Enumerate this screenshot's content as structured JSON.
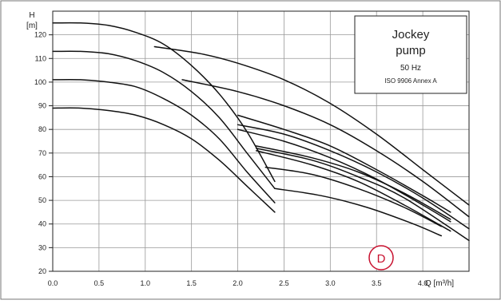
{
  "chart_data": {
    "type": "line",
    "xlabel": "Q [m³/h]",
    "ylabel_symbol": "H",
    "ylabel_unit": "[m]",
    "xlim": [
      0,
      4.5
    ],
    "ylim": [
      20,
      130
    ],
    "x_ticks": [
      "0.0",
      "0.5",
      "1.0",
      "1.5",
      "2.0",
      "2.5",
      "3.0",
      "3.5",
      "4.0"
    ],
    "y_ticks": [
      "20",
      "30",
      "40",
      "50",
      "60",
      "70",
      "80",
      "90",
      "100",
      "110",
      "120"
    ],
    "grid": true,
    "legend_box": {
      "title_line1": "Jockey",
      "title_line2": "pump",
      "frequency": "50 Hz",
      "standard": "ISO 9906 Annex A"
    },
    "badge": "D",
    "series": [
      {
        "points": [
          [
            0,
            125
          ],
          [
            0.3,
            125
          ],
          [
            0.6,
            124
          ],
          [
            0.9,
            121
          ],
          [
            1.2,
            116
          ],
          [
            1.5,
            107
          ],
          [
            1.8,
            95
          ],
          [
            2.1,
            79
          ],
          [
            2.4,
            58
          ]
        ]
      },
      {
        "points": [
          [
            0,
            113
          ],
          [
            0.3,
            113
          ],
          [
            0.6,
            112
          ],
          [
            0.9,
            109
          ],
          [
            1.2,
            104
          ],
          [
            1.5,
            96
          ],
          [
            1.8,
            85
          ],
          [
            2.1,
            70
          ],
          [
            2.4,
            55
          ]
        ]
      },
      {
        "points": [
          [
            0,
            101
          ],
          [
            0.3,
            101
          ],
          [
            0.6,
            100
          ],
          [
            0.9,
            98
          ],
          [
            1.2,
            93
          ],
          [
            1.5,
            86
          ],
          [
            1.8,
            76
          ],
          [
            2.1,
            62
          ],
          [
            2.4,
            49
          ]
        ]
      },
      {
        "points": [
          [
            0,
            89
          ],
          [
            0.3,
            89
          ],
          [
            0.6,
            88
          ],
          [
            0.9,
            86
          ],
          [
            1.2,
            82
          ],
          [
            1.5,
            76
          ],
          [
            1.8,
            67
          ],
          [
            2.1,
            56
          ],
          [
            2.4,
            45
          ]
        ]
      },
      {
        "points": [
          [
            1.1,
            115
          ],
          [
            1.6,
            112
          ],
          [
            2.0,
            108
          ],
          [
            2.5,
            101
          ],
          [
            3.0,
            91
          ],
          [
            3.5,
            78
          ],
          [
            4.0,
            63
          ],
          [
            4.5,
            48
          ]
        ]
      },
      {
        "points": [
          [
            1.4,
            101
          ],
          [
            2.0,
            96
          ],
          [
            2.5,
            90
          ],
          [
            3.0,
            82
          ],
          [
            3.5,
            71
          ],
          [
            4.0,
            58
          ],
          [
            4.5,
            43
          ]
        ]
      },
      {
        "points": [
          [
            2.0,
            86
          ],
          [
            2.5,
            80
          ],
          [
            3.0,
            73
          ],
          [
            3.5,
            63
          ],
          [
            4.0,
            52
          ],
          [
            4.3,
            45
          ]
        ]
      },
      {
        "points": [
          [
            2.0,
            82
          ],
          [
            2.5,
            78
          ],
          [
            3.0,
            71
          ],
          [
            3.5,
            62
          ],
          [
            4.0,
            51
          ],
          [
            4.5,
            38
          ]
        ]
      },
      {
        "points": [
          [
            2.0,
            80
          ],
          [
            2.5,
            75
          ],
          [
            3.0,
            68
          ],
          [
            3.5,
            59
          ],
          [
            4.0,
            48
          ],
          [
            4.3,
            41
          ]
        ]
      },
      {
        "points": [
          [
            2.2,
            73
          ],
          [
            2.8,
            68
          ],
          [
            3.3,
            62
          ],
          [
            3.8,
            53
          ],
          [
            4.3,
            42
          ]
        ]
      },
      {
        "points": [
          [
            2.2,
            72
          ],
          [
            2.8,
            67
          ],
          [
            3.3,
            60
          ],
          [
            3.8,
            51
          ],
          [
            4.5,
            33
          ]
        ]
      },
      {
        "points": [
          [
            2.2,
            71
          ],
          [
            2.8,
            65
          ],
          [
            3.3,
            58
          ],
          [
            3.8,
            48
          ],
          [
            4.3,
            37
          ]
        ]
      },
      {
        "points": [
          [
            2.3,
            64
          ],
          [
            2.8,
            61
          ],
          [
            3.3,
            55
          ],
          [
            3.8,
            47
          ],
          [
            4.2,
            39
          ]
        ]
      },
      {
        "points": [
          [
            2.4,
            55
          ],
          [
            2.9,
            52
          ],
          [
            3.4,
            47
          ],
          [
            3.9,
            40
          ],
          [
            4.2,
            35
          ]
        ]
      }
    ]
  }
}
